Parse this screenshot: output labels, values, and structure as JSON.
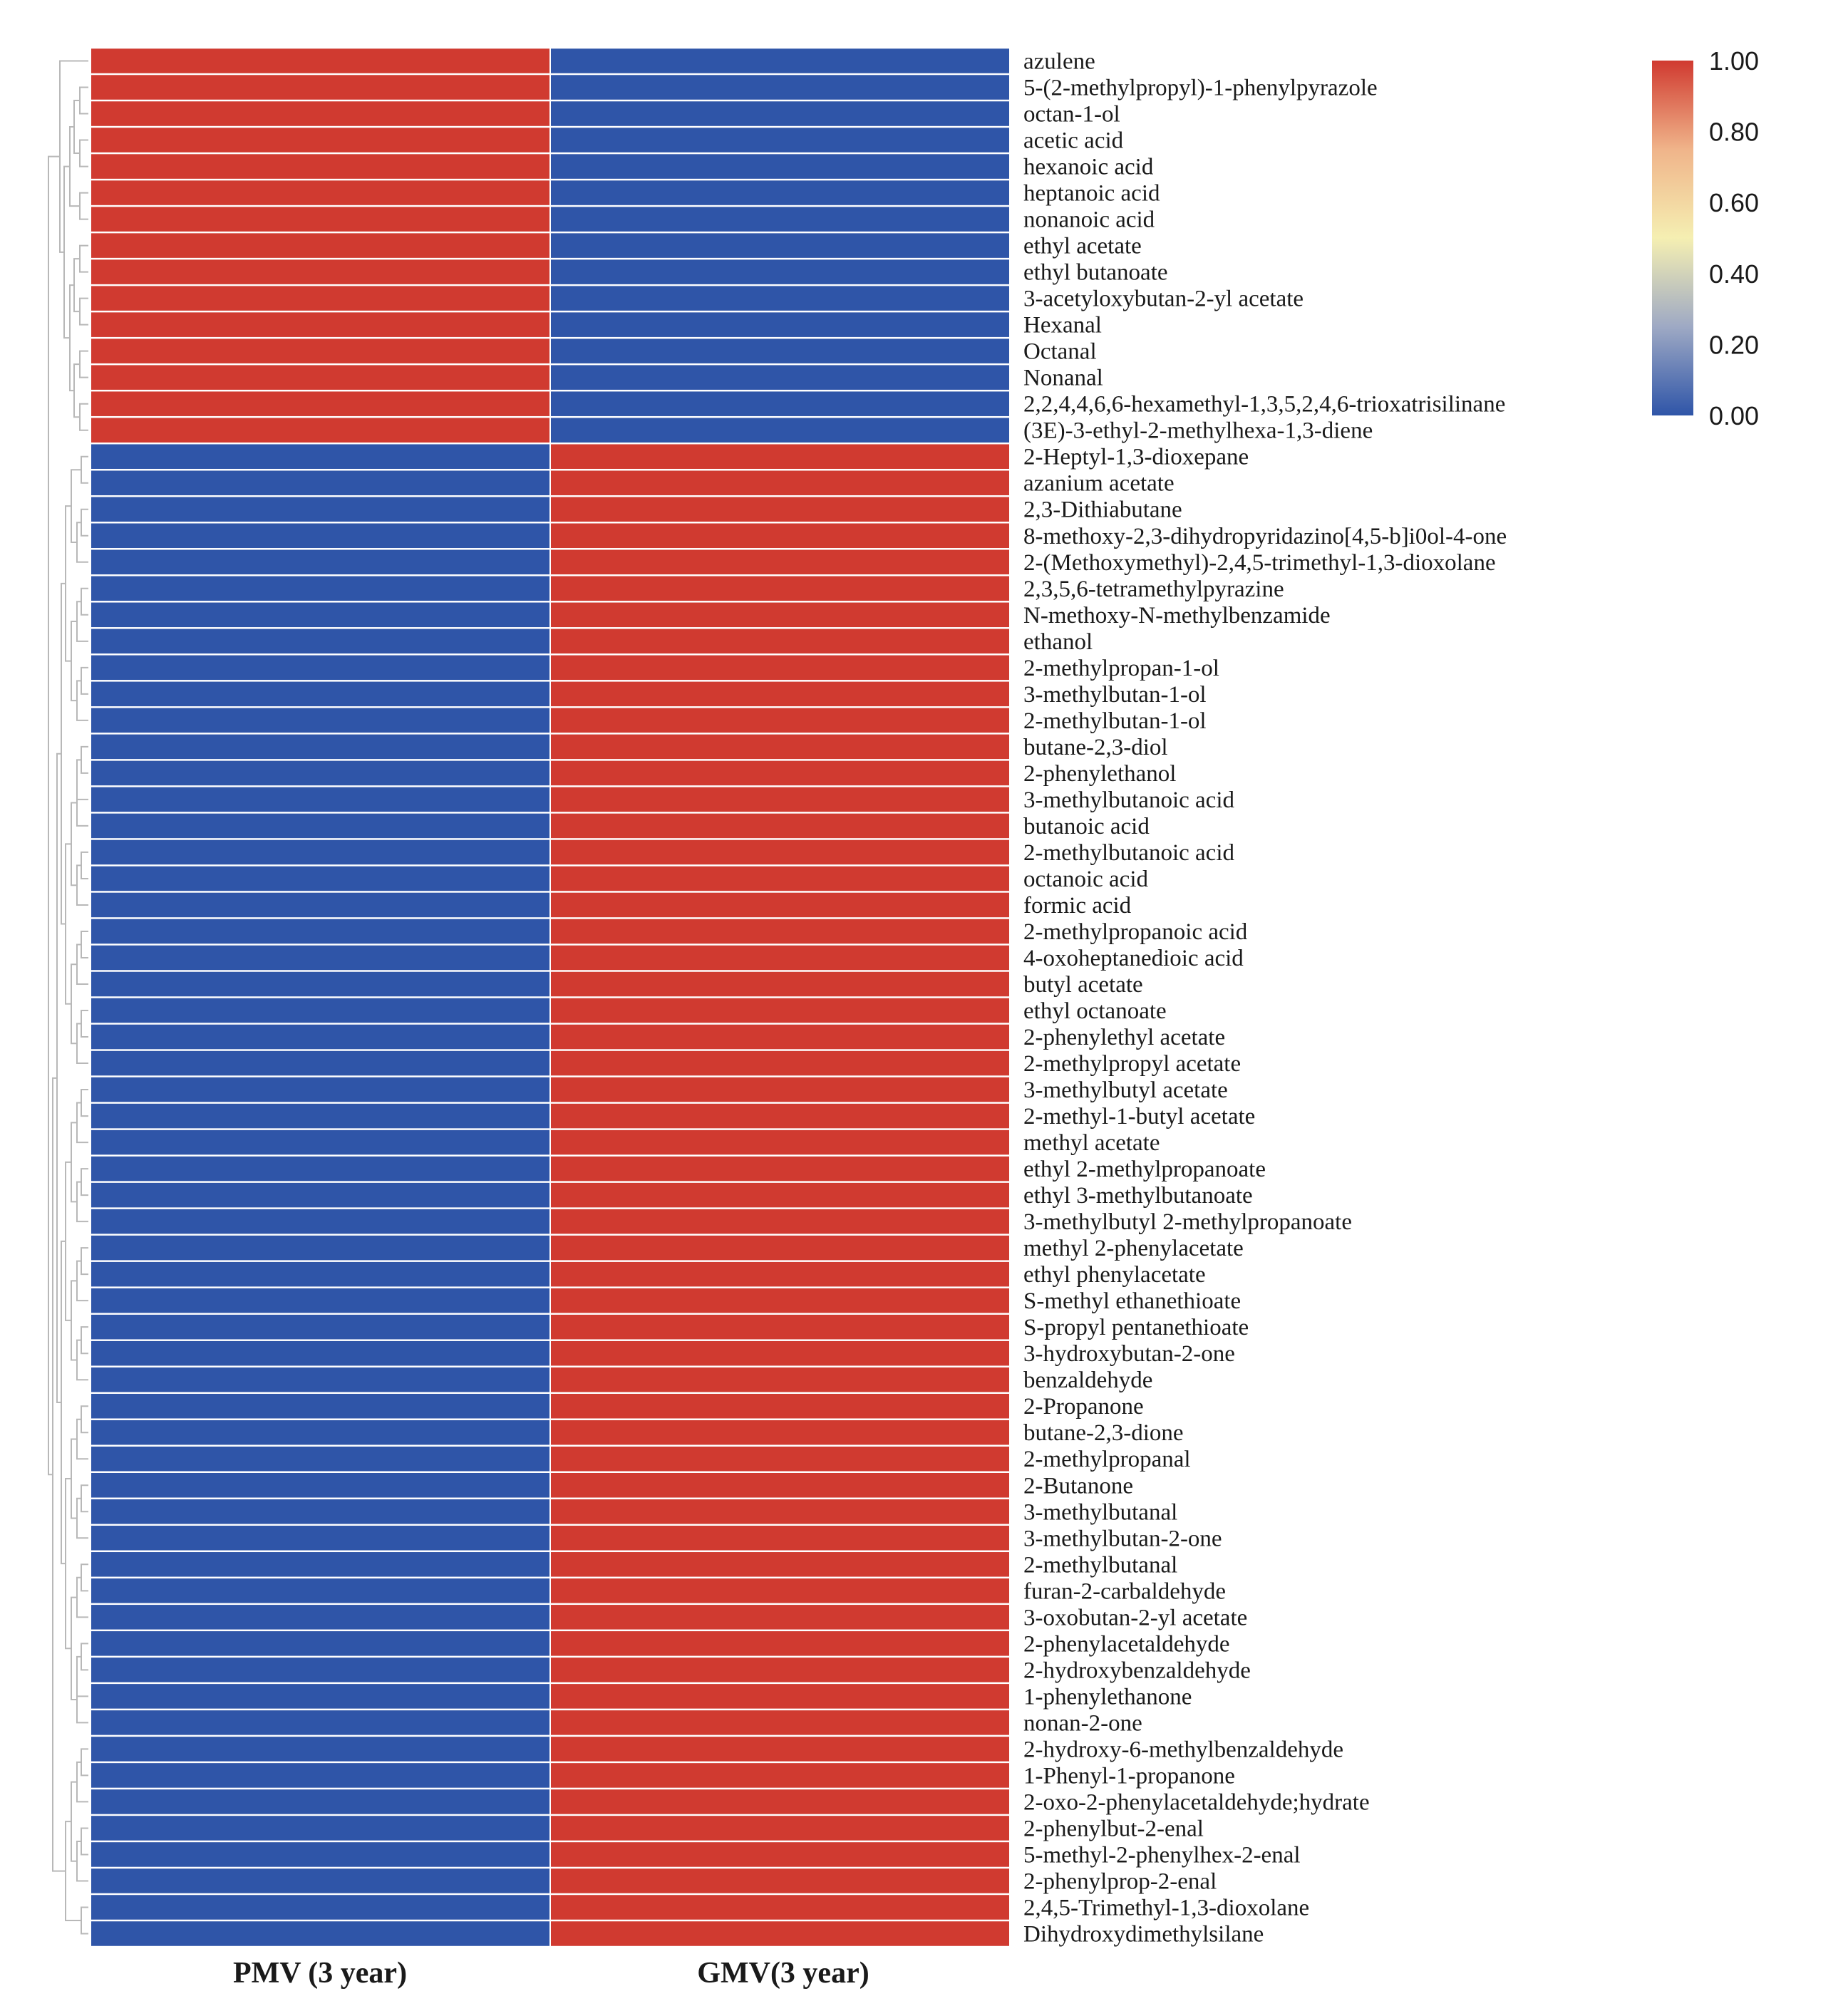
{
  "chart_data": {
    "type": "heatmap",
    "title": "",
    "columns": [
      "PMV (3 year)",
      "GMV(3 year)"
    ],
    "rows": [
      "azulene",
      "5-(2-methylpropyl)-1-phenylpyrazole",
      "octan-1-ol",
      "acetic acid",
      "hexanoic acid",
      "heptanoic acid",
      "nonanoic acid",
      "ethyl acetate",
      "ethyl butanoate",
      "3-acetyloxybutan-2-yl acetate",
      "Hexanal",
      "Octanal",
      "Nonanal",
      "2,2,4,4,6,6-hexamethyl-1,3,5,2,4,6-trioxatrisilinane",
      "(3E)-3-ethyl-2-methylhexa-1,3-diene",
      "2-Heptyl-1,3-dioxepane",
      "azanium acetate",
      "2,3-Dithiabutane",
      "8-methoxy-2,3-dihydropyridazino[4,5-b]i0ol-4-one",
      "2-(Methoxymethyl)-2,4,5-trimethyl-1,3-dioxolane",
      "2,3,5,6-tetramethylpyrazine",
      "N-methoxy-N-methylbenzamide",
      "ethanol",
      "2-methylpropan-1-ol",
      "3-methylbutan-1-ol",
      "2-methylbutan-1-ol",
      "butane-2,3-diol",
      "2-phenylethanol",
      "3-methylbutanoic acid",
      "butanoic acid",
      "2-methylbutanoic acid",
      "octanoic acid",
      "formic acid",
      "2-methylpropanoic acid",
      "4-oxoheptanedioic acid",
      "butyl acetate",
      "ethyl octanoate",
      "2-phenylethyl acetate",
      "2-methylpropyl acetate",
      "3-methylbutyl acetate",
      "2-methyl-1-butyl acetate",
      "methyl acetate",
      "ethyl 2-methylpropanoate",
      "ethyl 3-methylbutanoate",
      "3-methylbutyl 2-methylpropanoate",
      "methyl 2-phenylacetate",
      "ethyl phenylacetate",
      "S-methyl ethanethioate",
      "S-propyl pentanethioate",
      "3-hydroxybutan-2-one",
      "benzaldehyde",
      "2-Propanone",
      "butane-2,3-dione",
      "2-methylpropanal",
      "2-Butanone",
      "3-methylbutanal",
      "3-methylbutan-2-one",
      "2-methylbutanal",
      "furan-2-carbaldehyde",
      "3-oxobutan-2-yl acetate",
      "2-phenylacetaldehyde",
      "2-hydroxybenzaldehyde",
      "1-phenylethanone",
      "nonan-2-one",
      "2-hydroxy-6-methylbenzaldehyde",
      "1-Phenyl-1-propanone",
      "2-oxo-2-phenylacetaldehyde;hydrate",
      "2-phenylbut-2-enal",
      "5-methyl-2-phenylhex-2-enal",
      "2-phenylprop-2-enal",
      "2,4,5-Trimethyl-1,3-dioxolane",
      "Dihydroxydimethylsilane"
    ],
    "values": [
      [
        1,
        0
      ],
      [
        1,
        0
      ],
      [
        1,
        0
      ],
      [
        1,
        0
      ],
      [
        1,
        0
      ],
      [
        1,
        0
      ],
      [
        1,
        0
      ],
      [
        1,
        0
      ],
      [
        1,
        0
      ],
      [
        1,
        0
      ],
      [
        1,
        0
      ],
      [
        1,
        0
      ],
      [
        1,
        0
      ],
      [
        1,
        0
      ],
      [
        1,
        0
      ],
      [
        0,
        1
      ],
      [
        0,
        1
      ],
      [
        0,
        1
      ],
      [
        0,
        1
      ],
      [
        0,
        1
      ],
      [
        0,
        1
      ],
      [
        0,
        1
      ],
      [
        0,
        1
      ],
      [
        0,
        1
      ],
      [
        0,
        1
      ],
      [
        0,
        1
      ],
      [
        0,
        1
      ],
      [
        0,
        1
      ],
      [
        0,
        1
      ],
      [
        0,
        1
      ],
      [
        0,
        1
      ],
      [
        0,
        1
      ],
      [
        0,
        1
      ],
      [
        0,
        1
      ],
      [
        0,
        1
      ],
      [
        0,
        1
      ],
      [
        0,
        1
      ],
      [
        0,
        1
      ],
      [
        0,
        1
      ],
      [
        0,
        1
      ],
      [
        0,
        1
      ],
      [
        0,
        1
      ],
      [
        0,
        1
      ],
      [
        0,
        1
      ],
      [
        0,
        1
      ],
      [
        0,
        1
      ],
      [
        0,
        1
      ],
      [
        0,
        1
      ],
      [
        0,
        1
      ],
      [
        0,
        1
      ],
      [
        0,
        1
      ],
      [
        0,
        1
      ],
      [
        0,
        1
      ],
      [
        0,
        1
      ],
      [
        0,
        1
      ],
      [
        0,
        1
      ],
      [
        0,
        1
      ],
      [
        0,
        1
      ],
      [
        0,
        1
      ],
      [
        0,
        1
      ],
      [
        0,
        1
      ],
      [
        0,
        1
      ],
      [
        0,
        1
      ],
      [
        0,
        1
      ],
      [
        0,
        1
      ],
      [
        0,
        1
      ],
      [
        0,
        1
      ],
      [
        0,
        1
      ],
      [
        0,
        1
      ],
      [
        0,
        1
      ],
      [
        0,
        1
      ],
      [
        0,
        1
      ]
    ],
    "colorbar": {
      "min": 0.0,
      "max": 1.0,
      "ticks": [
        "1.00",
        "0.80",
        "0.60",
        "0.40",
        "0.20",
        "0.00"
      ],
      "colors": [
        "#d03a30",
        "#f0b48a",
        "#f5efb2",
        "#9ea9c4",
        "#2f55a8"
      ]
    },
    "cell_colors": {
      "high": "#d03a30",
      "low": "#2f55a8"
    },
    "row_dendrogram": true
  }
}
